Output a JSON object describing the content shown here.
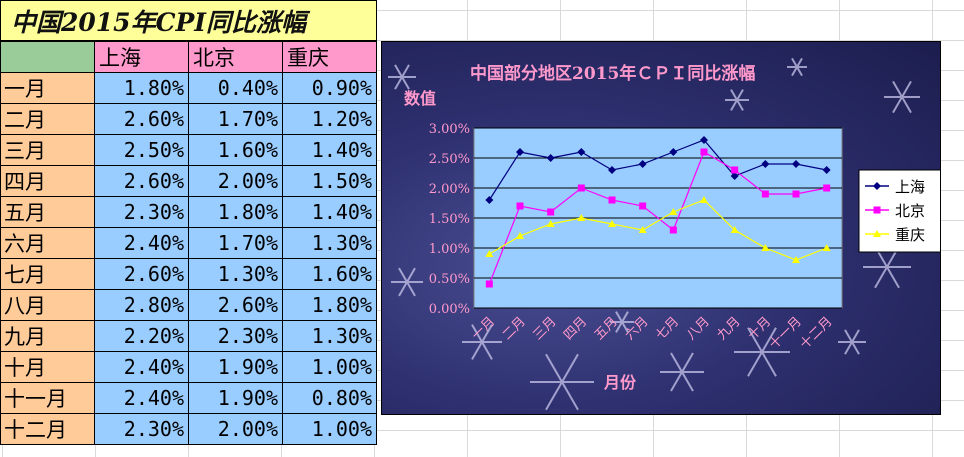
{
  "title": "中国2015年CPI同比涨幅",
  "table": {
    "headers": [
      "上海",
      "北京",
      "重庆"
    ],
    "rows": [
      {
        "month": "一月",
        "values": [
          "1.80%",
          "0.40%",
          "0.90%"
        ]
      },
      {
        "month": "二月",
        "values": [
          "2.60%",
          "1.70%",
          "1.20%"
        ]
      },
      {
        "month": "三月",
        "values": [
          "2.50%",
          "1.60%",
          "1.40%"
        ]
      },
      {
        "month": "四月",
        "values": [
          "2.60%",
          "2.00%",
          "1.50%"
        ]
      },
      {
        "month": "五月",
        "values": [
          "2.30%",
          "1.80%",
          "1.40%"
        ]
      },
      {
        "month": "六月",
        "values": [
          "2.40%",
          "1.70%",
          "1.30%"
        ]
      },
      {
        "month": "七月",
        "values": [
          "2.60%",
          "1.30%",
          "1.60%"
        ]
      },
      {
        "month": "八月",
        "values": [
          "2.80%",
          "2.60%",
          "1.80%"
        ]
      },
      {
        "month": "九月",
        "values": [
          "2.20%",
          "2.30%",
          "1.30%"
        ]
      },
      {
        "month": "十月",
        "values": [
          "2.40%",
          "1.90%",
          "1.00%"
        ]
      },
      {
        "month": "十一月",
        "values": [
          "2.40%",
          "1.90%",
          "0.80%"
        ]
      },
      {
        "month": "十二月",
        "values": [
          "2.30%",
          "2.00%",
          "1.00%"
        ]
      }
    ]
  },
  "colors": {
    "shanghai": "#000080",
    "beijing": "#ff00ff",
    "chongqing": "#ffff00",
    "plot_bg": "#99ccff",
    "axis_text": "#ff99cc"
  },
  "chart_data": {
    "type": "line",
    "title": "中国部分地区2015年ＣＰＩ同比涨幅",
    "xlabel": "月份",
    "ylabel": "数值",
    "categories": [
      "一月",
      "二月",
      "三月",
      "四月",
      "五月",
      "六月",
      "七月",
      "八月",
      "九月",
      "十月",
      "十一月",
      "十二月"
    ],
    "yticks": [
      "0.00%",
      "0.50%",
      "1.00%",
      "1.50%",
      "2.00%",
      "2.50%",
      "3.00%"
    ],
    "ylim": [
      0,
      3.0
    ],
    "grid": true,
    "legend_position": "right",
    "series": [
      {
        "name": "上海",
        "marker": "diamond",
        "values": [
          1.8,
          2.6,
          2.5,
          2.6,
          2.3,
          2.4,
          2.6,
          2.8,
          2.2,
          2.4,
          2.4,
          2.3
        ]
      },
      {
        "name": "北京",
        "marker": "square",
        "values": [
          0.4,
          1.7,
          1.6,
          2.0,
          1.8,
          1.7,
          1.3,
          2.6,
          2.3,
          1.9,
          1.9,
          2.0
        ]
      },
      {
        "name": "重庆",
        "marker": "triangle",
        "values": [
          0.9,
          1.2,
          1.4,
          1.5,
          1.4,
          1.3,
          1.6,
          1.8,
          1.3,
          1.0,
          0.8,
          1.0
        ]
      }
    ]
  }
}
